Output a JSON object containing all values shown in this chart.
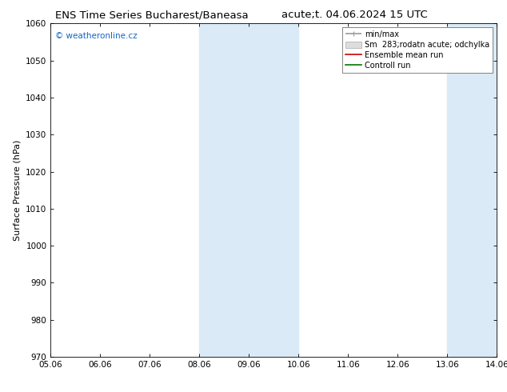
{
  "title_left": "ENS Time Series Bucharest/Baneasa",
  "title_right": "acute;t. 04.06.2024 15 UTC",
  "ylabel": "Surface Pressure (hPa)",
  "ylim": [
    970,
    1060
  ],
  "yticks": [
    970,
    980,
    990,
    1000,
    1010,
    1020,
    1030,
    1040,
    1050,
    1060
  ],
  "xtick_labels": [
    "05.06",
    "06.06",
    "07.06",
    "08.06",
    "09.06",
    "10.06",
    "11.06",
    "12.06",
    "13.06",
    "14.06"
  ],
  "shaded_bands": [
    {
      "xstart": 3,
      "xend": 5,
      "color": "#daeaf6"
    },
    {
      "xstart": 8,
      "xend": 9,
      "color": "#daeaf6"
    }
  ],
  "watermark": "© weatheronline.cz",
  "watermark_color": "#1565c0",
  "legend_entries": [
    {
      "label": "min/max",
      "color": "#999999",
      "lw": 1.2,
      "type": "line"
    },
    {
      "label": "Sm  283;rodatn acute; odchylka",
      "color": "#cccccc",
      "lw": 6,
      "type": "band"
    },
    {
      "label": "Ensemble mean run",
      "color": "#cc0000",
      "lw": 1.2,
      "type": "line"
    },
    {
      "label": "Controll run",
      "color": "#007700",
      "lw": 1.2,
      "type": "line"
    }
  ],
  "bg_color": "#ffffff",
  "title_fontsize": 9.5,
  "axis_label_fontsize": 8,
  "tick_fontsize": 7.5,
  "legend_fontsize": 7,
  "watermark_fontsize": 7.5
}
